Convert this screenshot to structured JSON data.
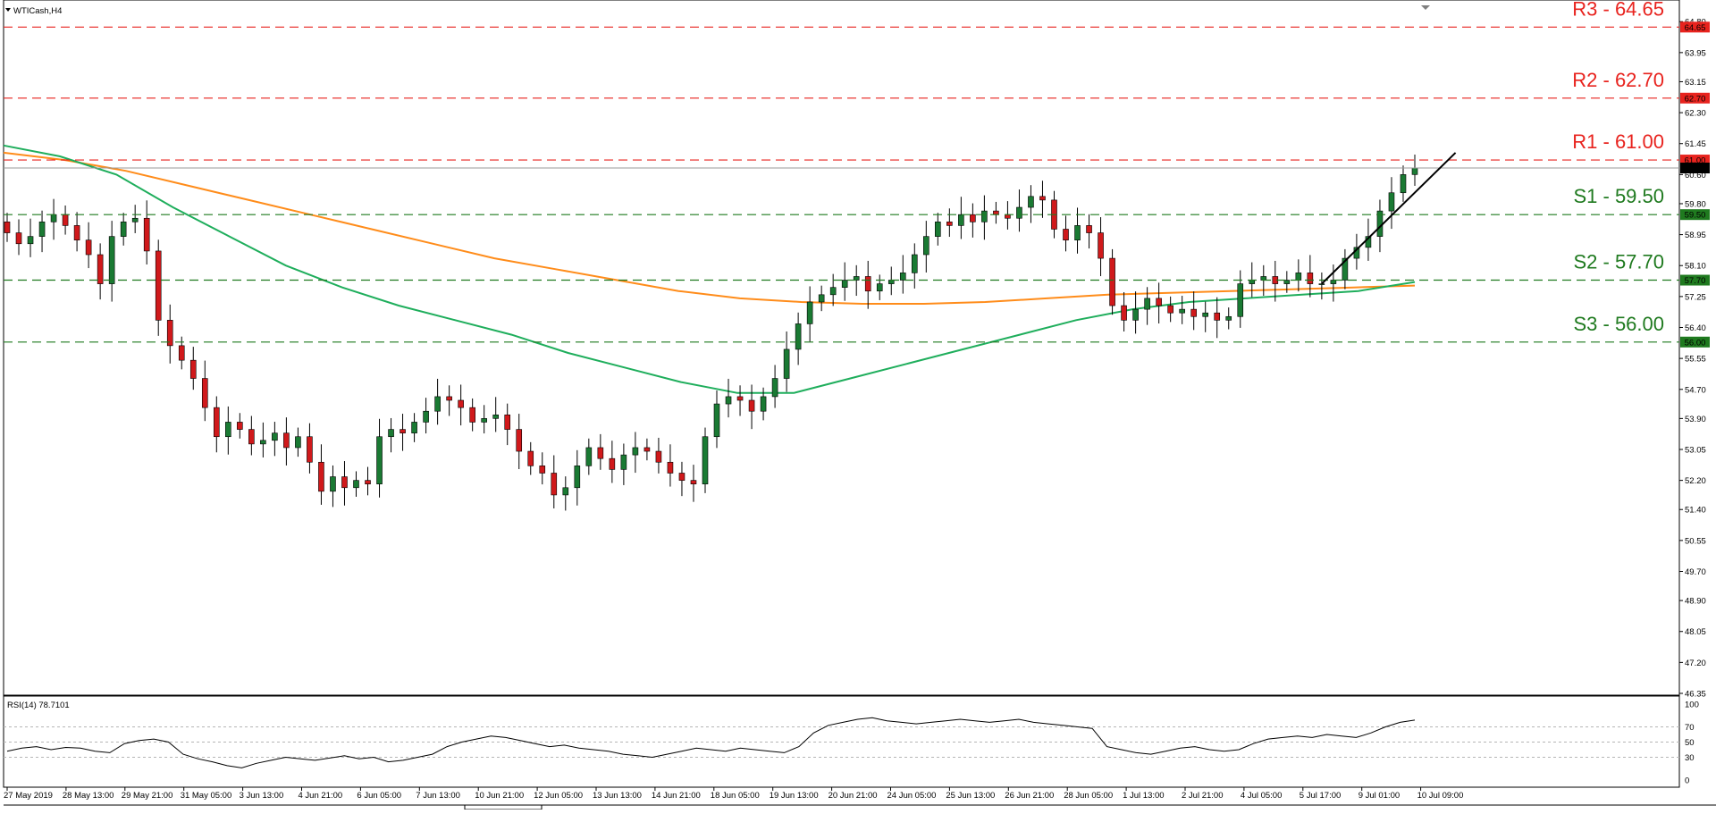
{
  "symbol_title": "WTICash,H4",
  "rsi_title": "RSI(14) 78.7101",
  "chart_data": {
    "type": "candlestick",
    "price_range": [
      46.35,
      65.1
    ],
    "y_ticks": [
      46.35,
      47.2,
      48.05,
      48.9,
      49.7,
      50.55,
      51.4,
      52.2,
      53.05,
      53.9,
      54.7,
      55.55,
      56.4,
      57.25,
      58.1,
      58.95,
      59.8,
      60.6,
      61.45,
      62.3,
      63.15,
      63.95,
      64.8
    ],
    "levels": [
      {
        "name": "R3",
        "label": "R3 - 64.65",
        "value": 64.65,
        "tag": "64.65",
        "color": "#e8231e"
      },
      {
        "name": "R2",
        "label": "R2 - 62.70",
        "value": 62.7,
        "tag": "62.70",
        "color": "#e8231e"
      },
      {
        "name": "R1",
        "label": "R1 - 61.00",
        "value": 61.0,
        "tag": "61.00",
        "color": "#e8231e"
      },
      {
        "name": "S1",
        "label": "S1 - 59.50",
        "value": 59.5,
        "tag": "59.50",
        "color": "#1f7a1f"
      },
      {
        "name": "S2",
        "label": "S2 - 57.70",
        "value": 57.7,
        "tag": "57.70",
        "color": "#1f7a1f"
      },
      {
        "name": "S3",
        "label": "S3 - 56.00",
        "value": 56.0,
        "tag": "56.00",
        "color": "#1f7a1f"
      }
    ],
    "current_price": {
      "value": 60.78,
      "tag": "60.78"
    },
    "x_labels": [
      "27 May 2019",
      "28 May 13:00",
      "29 May 21:00",
      "31 May 05:00",
      "3 Jun 13:00",
      "4 Jun 21:00",
      "6 Jun 05:00",
      "7 Jun 13:00",
      "10 Jun 21:00",
      "12 Jun 05:00",
      "13 Jun 13:00",
      "14 Jun 21:00",
      "18 Jun 05:00",
      "19 Jun 13:00",
      "20 Jun 21:00",
      "24 Jun 05:00",
      "25 Jun 13:00",
      "26 Jun 21:00",
      "28 Jun 05:00",
      "1 Jul 13:00",
      "2 Jul 21:00",
      "4 Jul 05:00",
      "5 Jul 17:00",
      "9 Jul 01:00",
      "10 Jul 09:00"
    ],
    "close_series": [
      59.0,
      58.7,
      58.9,
      59.3,
      59.5,
      59.2,
      58.8,
      58.4,
      57.6,
      58.9,
      59.3,
      59.4,
      58.5,
      56.6,
      55.9,
      55.5,
      55.0,
      54.2,
      53.4,
      53.8,
      53.6,
      53.2,
      53.3,
      53.5,
      53.1,
      53.4,
      52.7,
      51.9,
      52.3,
      52.0,
      52.2,
      52.1,
      53.4,
      53.6,
      53.5,
      53.8,
      54.1,
      54.5,
      54.4,
      54.2,
      53.8,
      53.9,
      54.0,
      53.6,
      53.0,
      52.6,
      52.4,
      51.8,
      52.0,
      52.6,
      53.1,
      52.8,
      52.5,
      52.9,
      53.1,
      53.0,
      52.7,
      52.4,
      52.2,
      52.1,
      53.4,
      54.3,
      54.5,
      54.4,
      54.1,
      54.5,
      55.0,
      55.8,
      56.5,
      57.1,
      57.3,
      57.5,
      57.7,
      57.8,
      57.4,
      57.6,
      57.7,
      57.9,
      58.4,
      58.9,
      59.3,
      59.2,
      59.5,
      59.3,
      59.6,
      59.5,
      59.4,
      59.7,
      60.0,
      59.9,
      59.1,
      58.8,
      59.2,
      59.0,
      58.3,
      57.0,
      56.6,
      56.9,
      57.2,
      57.0,
      56.8,
      56.9,
      56.7,
      56.8,
      56.6,
      56.7,
      57.6,
      57.7,
      57.8,
      57.6,
      57.7,
      57.9,
      57.6,
      57.6,
      57.7,
      58.3,
      58.6,
      58.9,
      59.6,
      60.1,
      60.6,
      60.78
    ],
    "moving_averages": [
      {
        "period": 200,
        "color": "#ff8c1a",
        "values": [
          61.2,
          61.0,
          60.7,
          60.3,
          59.9,
          59.5,
          59.1,
          58.7,
          58.3,
          58.0,
          57.7,
          57.4,
          57.2,
          57.1,
          57.05,
          57.05,
          57.1,
          57.2,
          57.3,
          57.35,
          57.4,
          57.45,
          57.5,
          57.55
        ]
      },
      {
        "period": 100,
        "color": "#1fae5c",
        "values": [
          61.4,
          61.1,
          60.6,
          59.7,
          58.9,
          58.1,
          57.5,
          57.0,
          56.6,
          56.2,
          55.7,
          55.3,
          54.9,
          54.6,
          54.6,
          55.0,
          55.4,
          55.8,
          56.2,
          56.6,
          56.9,
          57.1,
          57.2,
          57.3,
          57.4,
          57.65
        ]
      }
    ],
    "rsi": {
      "value": 78.7101,
      "range": [
        0,
        100
      ],
      "ticks": [
        100,
        70,
        50,
        30,
        0
      ],
      "series": [
        38,
        42,
        44,
        40,
        43,
        42,
        38,
        36,
        48,
        52,
        54,
        50,
        34,
        28,
        24,
        19,
        16,
        22,
        26,
        30,
        28,
        26,
        29,
        32,
        28,
        30,
        24,
        26,
        30,
        34,
        44,
        50,
        54,
        58,
        56,
        52,
        48,
        44,
        46,
        42,
        40,
        38,
        34,
        32,
        30,
        34,
        38,
        42,
        40,
        38,
        42,
        40,
        38,
        36,
        44,
        62,
        72,
        76,
        80,
        82,
        78,
        76,
        74,
        76,
        78,
        80,
        78,
        76,
        78,
        80,
        76,
        74,
        72,
        70,
        68,
        44,
        40,
        36,
        34,
        38,
        42,
        44,
        40,
        38,
        40,
        48,
        54,
        56,
        58,
        56,
        60,
        58,
        56,
        62,
        70,
        76,
        79
      ]
    },
    "trendline": {
      "from": [
        113,
        57.6
      ],
      "to": [
        124.5,
        61.2
      ]
    }
  }
}
